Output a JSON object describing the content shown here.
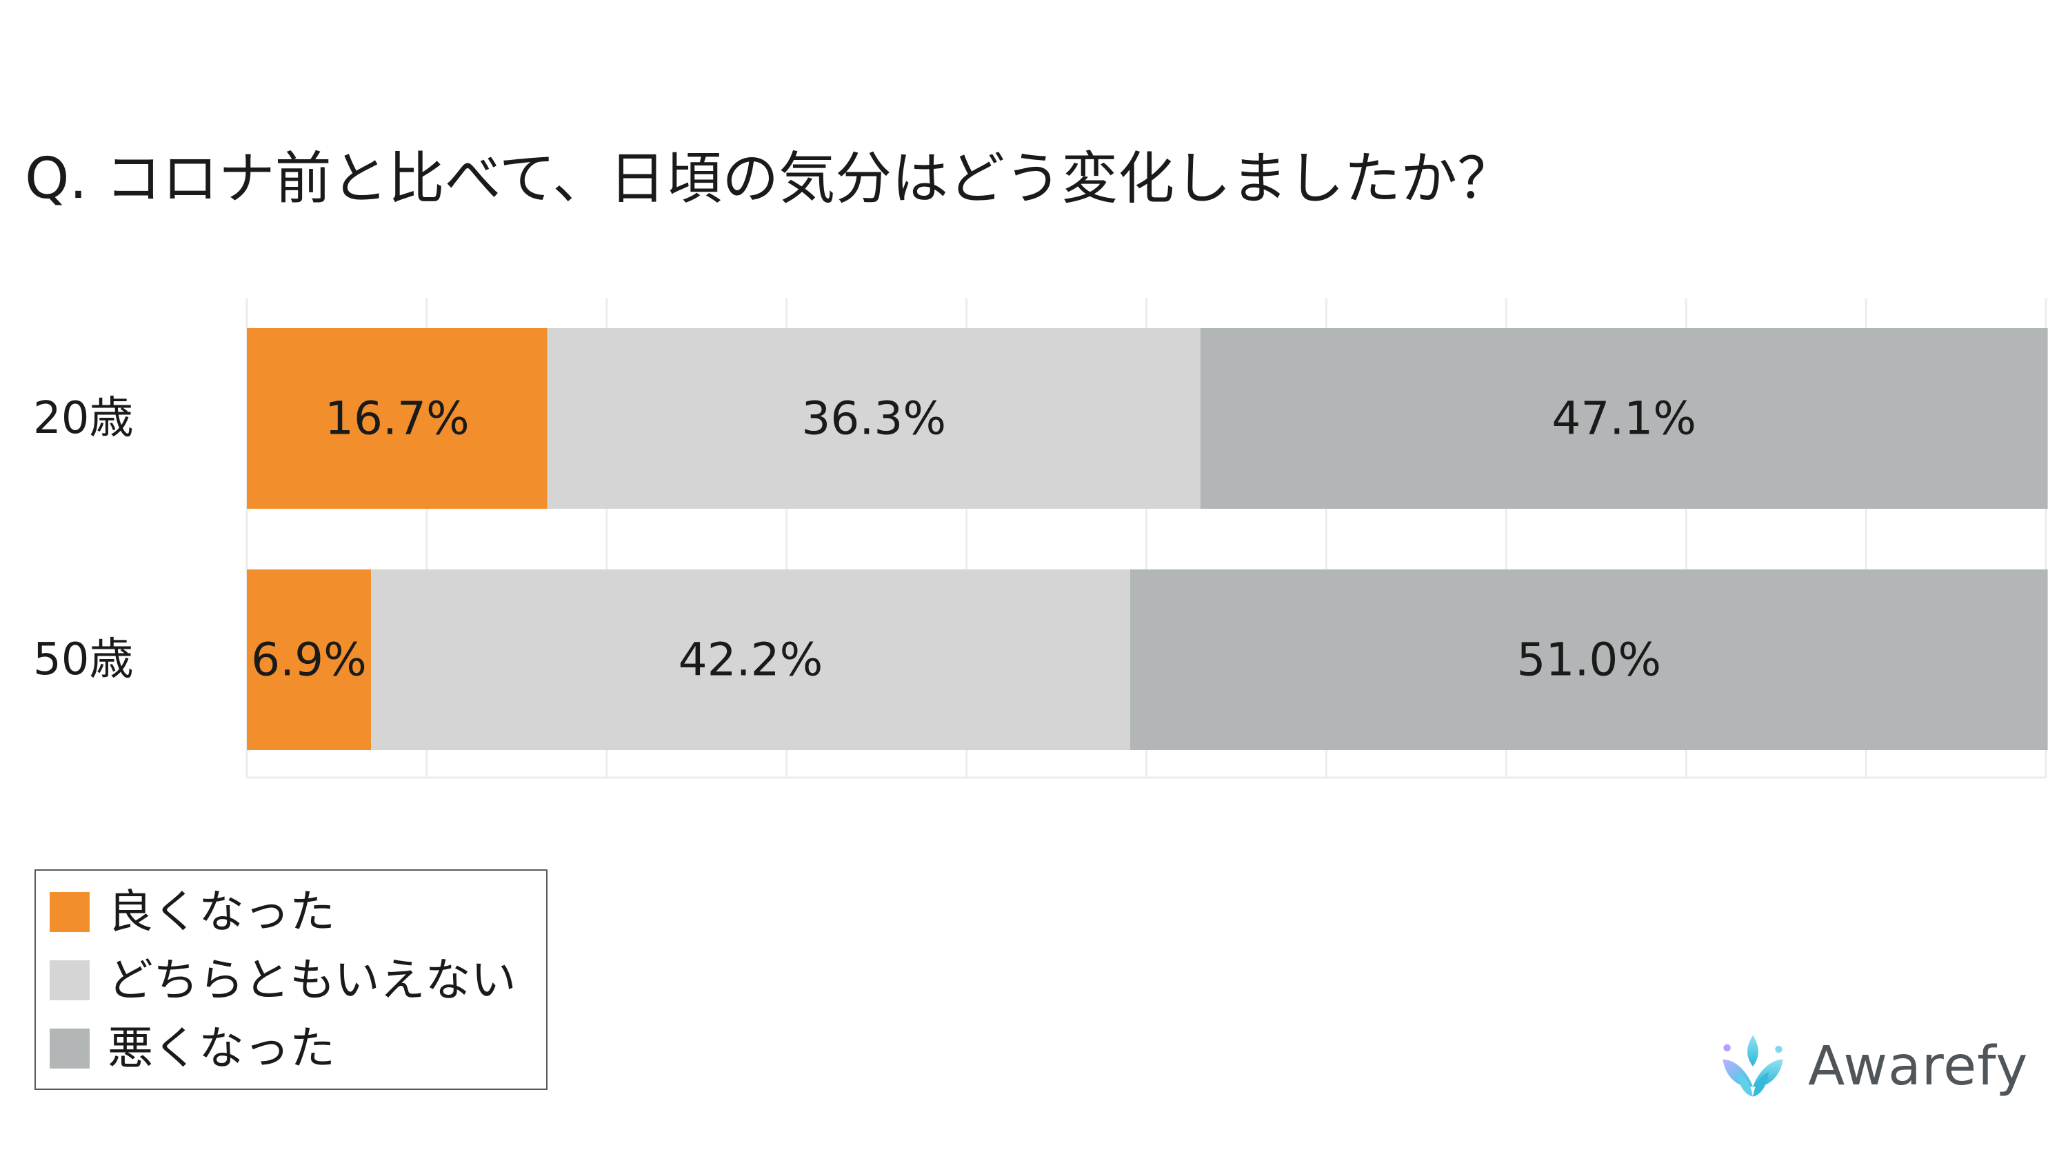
{
  "title": "Q. コロナ前と比べて、日頃の気分はどう変化しましたか？",
  "colors": {
    "better": "#f28e2b",
    "neutral": "#d5d5d5",
    "worse": "#b2b6b6",
    "grid": "#ececec",
    "text": "#1a1a1a"
  },
  "chart_data": {
    "type": "bar",
    "orientation": "horizontal",
    "stacked": true,
    "percent": true,
    "categories": [
      "20歳",
      "50歳"
    ],
    "series": [
      {
        "name": "良くなった",
        "values": [
          16.7,
          6.9
        ],
        "labels": [
          "16.7%",
          "6.9%"
        ],
        "color": "#f28e2b"
      },
      {
        "name": "どちらともいえない",
        "values": [
          36.3,
          42.2
        ],
        "labels": [
          "36.3%",
          "42.2%"
        ],
        "color": "#d5d5d5"
      },
      {
        "name": "悪くなった",
        "values": [
          47.1,
          51.0
        ],
        "labels": [
          "47.1%",
          "51.0%"
        ],
        "color": "#b2b6b6"
      }
    ],
    "xlim": [
      0,
      100
    ],
    "grid": true,
    "xlabel": "",
    "ylabel": "",
    "legend_position": "bottom-left"
  },
  "legend": {
    "items": [
      {
        "label": "良くなった",
        "color": "#f28e2b"
      },
      {
        "label": "どちらともいえない",
        "color": "#d5d5d5"
      },
      {
        "label": "悪くなった",
        "color": "#b2b6b6"
      }
    ]
  },
  "logo": {
    "text": "Awarefy",
    "icon": "awarefy-logo-icon"
  }
}
